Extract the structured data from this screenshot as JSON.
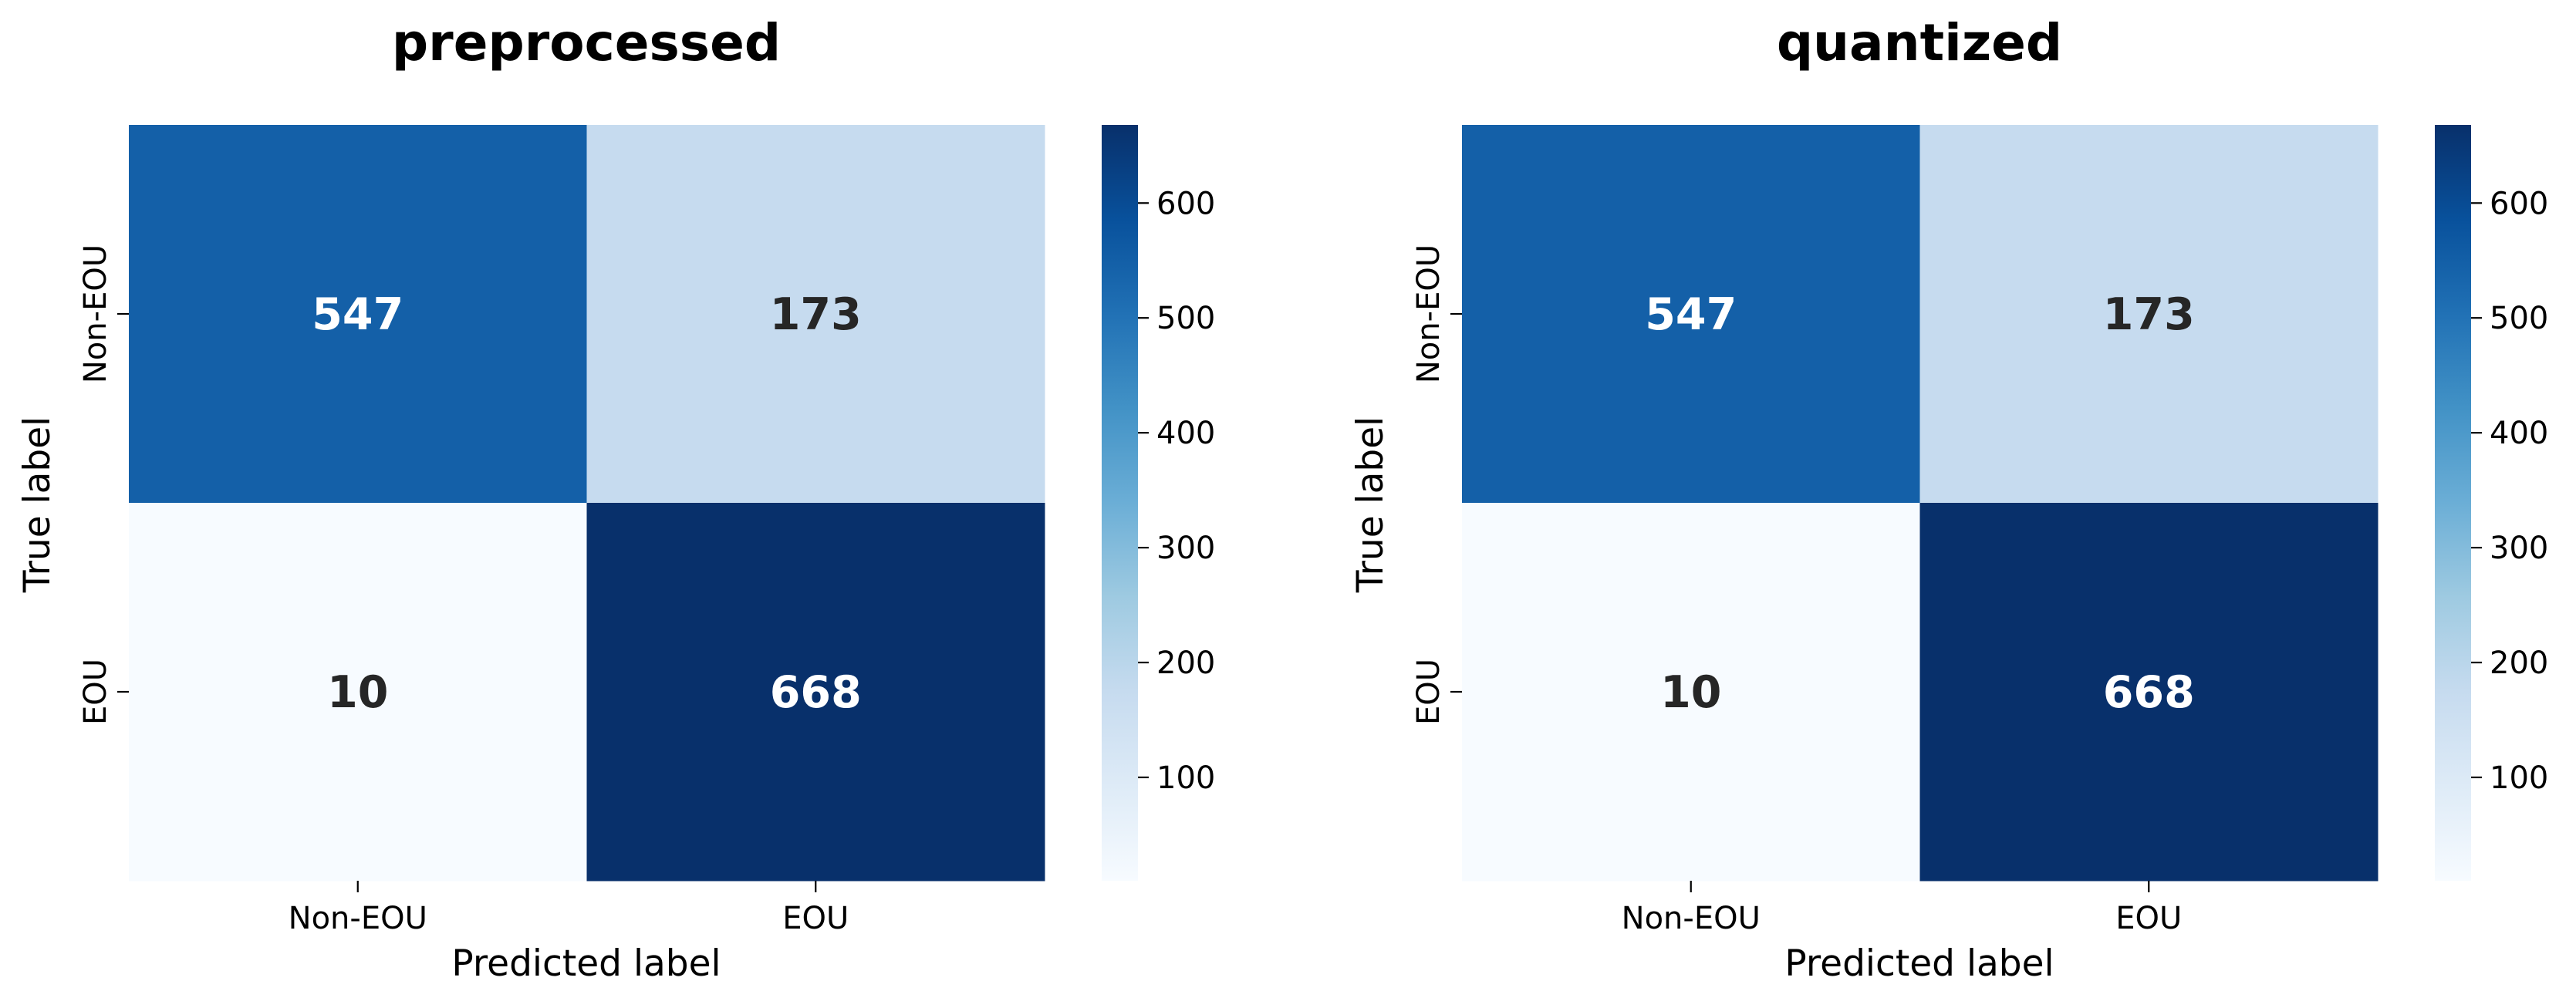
{
  "chart_data": [
    {
      "type": "heatmap",
      "title": "preprocessed",
      "xlabel": "Predicted label",
      "ylabel": "True label",
      "x_categories": [
        "Non-EOU",
        "EOU"
      ],
      "y_categories": [
        "Non-EOU",
        "EOU"
      ],
      "values": [
        [
          547,
          173
        ],
        [
          10,
          668
        ]
      ],
      "colormap": "Blues",
      "colorbar": {
        "range": [
          10,
          668
        ],
        "ticks": [
          100,
          200,
          300,
          400,
          500,
          600
        ]
      },
      "grid": false
    },
    {
      "type": "heatmap",
      "title": "quantized",
      "xlabel": "Predicted label",
      "ylabel": "True label",
      "x_categories": [
        "Non-EOU",
        "EOU"
      ],
      "y_categories": [
        "Non-EOU",
        "EOU"
      ],
      "values": [
        [
          547,
          173
        ],
        [
          10,
          668
        ]
      ],
      "colormap": "Blues",
      "colorbar": {
        "range": [
          10,
          668
        ],
        "ticks": [
          100,
          200,
          300,
          400,
          500,
          600
        ]
      },
      "grid": false
    }
  ],
  "colors": {
    "blues_stops": [
      "#f7fbff",
      "#deebf7",
      "#c6dbef",
      "#9ecae1",
      "#6baed6",
      "#4292c6",
      "#2171b5",
      "#08519c",
      "#08306b"
    ],
    "dark_text": "#262626",
    "light_text": "#ffffff"
  }
}
